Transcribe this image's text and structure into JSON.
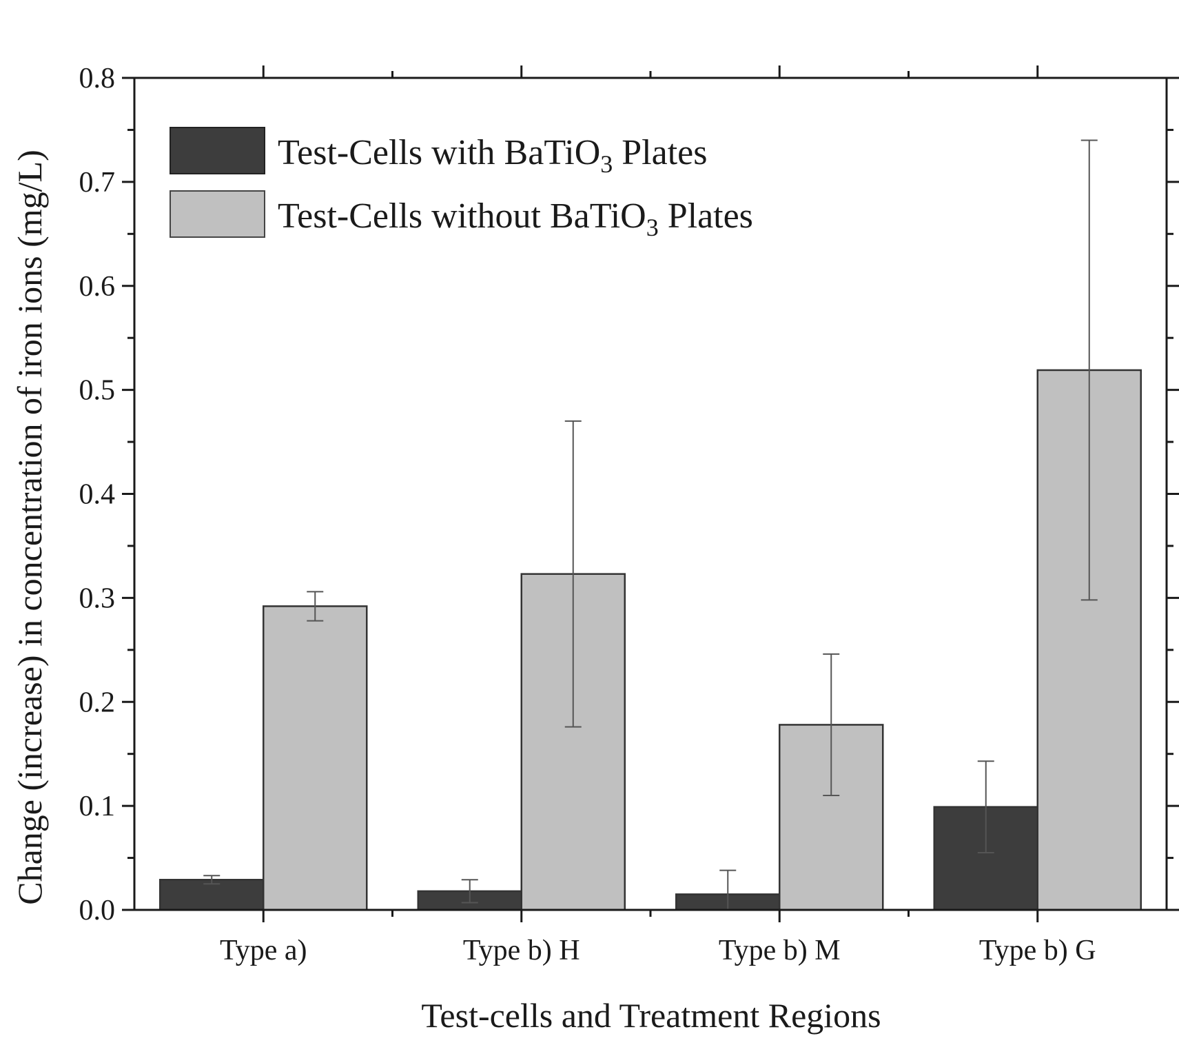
{
  "chart_data": {
    "type": "bar",
    "title": "",
    "xlabel": "Test-cells and Treatment Regions",
    "ylabel": "Change (increase) in concentration of iron ions (mg/L)",
    "ylim": [
      0,
      0.8
    ],
    "yticks": [
      "0.0",
      "0.1",
      "0.2",
      "0.3",
      "0.4",
      "0.5",
      "0.6",
      "0.7",
      "0.8"
    ],
    "ytick_values": [
      0,
      0.1,
      0.2,
      0.3,
      0.4,
      0.5,
      0.6,
      0.7,
      0.8
    ],
    "categories": [
      "Type a)",
      "Type b) H",
      "Type b) M",
      "Type b) G"
    ],
    "legend_position": "top-left",
    "series": [
      {
        "name": "Test-Cells with BaTiO3 Plates",
        "legend_parts": {
          "before": "Test-Cells with BaTiO",
          "sub": "3",
          "after": " Plates"
        },
        "color": "#3d3d3d",
        "values": [
          0.029,
          0.018,
          0.015,
          0.099
        ],
        "errors": [
          0.004,
          0.011,
          0.023,
          0.044
        ]
      },
      {
        "name": "Test-Cells without BaTiO3 Plates",
        "legend_parts": {
          "before": "Test-Cells without BaTiO",
          "sub": "3",
          "after": " Plates"
        },
        "color": "#c0c0c0",
        "values": [
          0.292,
          0.323,
          0.178,
          0.519
        ],
        "errors": [
          0.014,
          0.147,
          0.068,
          0.221
        ]
      }
    ]
  }
}
